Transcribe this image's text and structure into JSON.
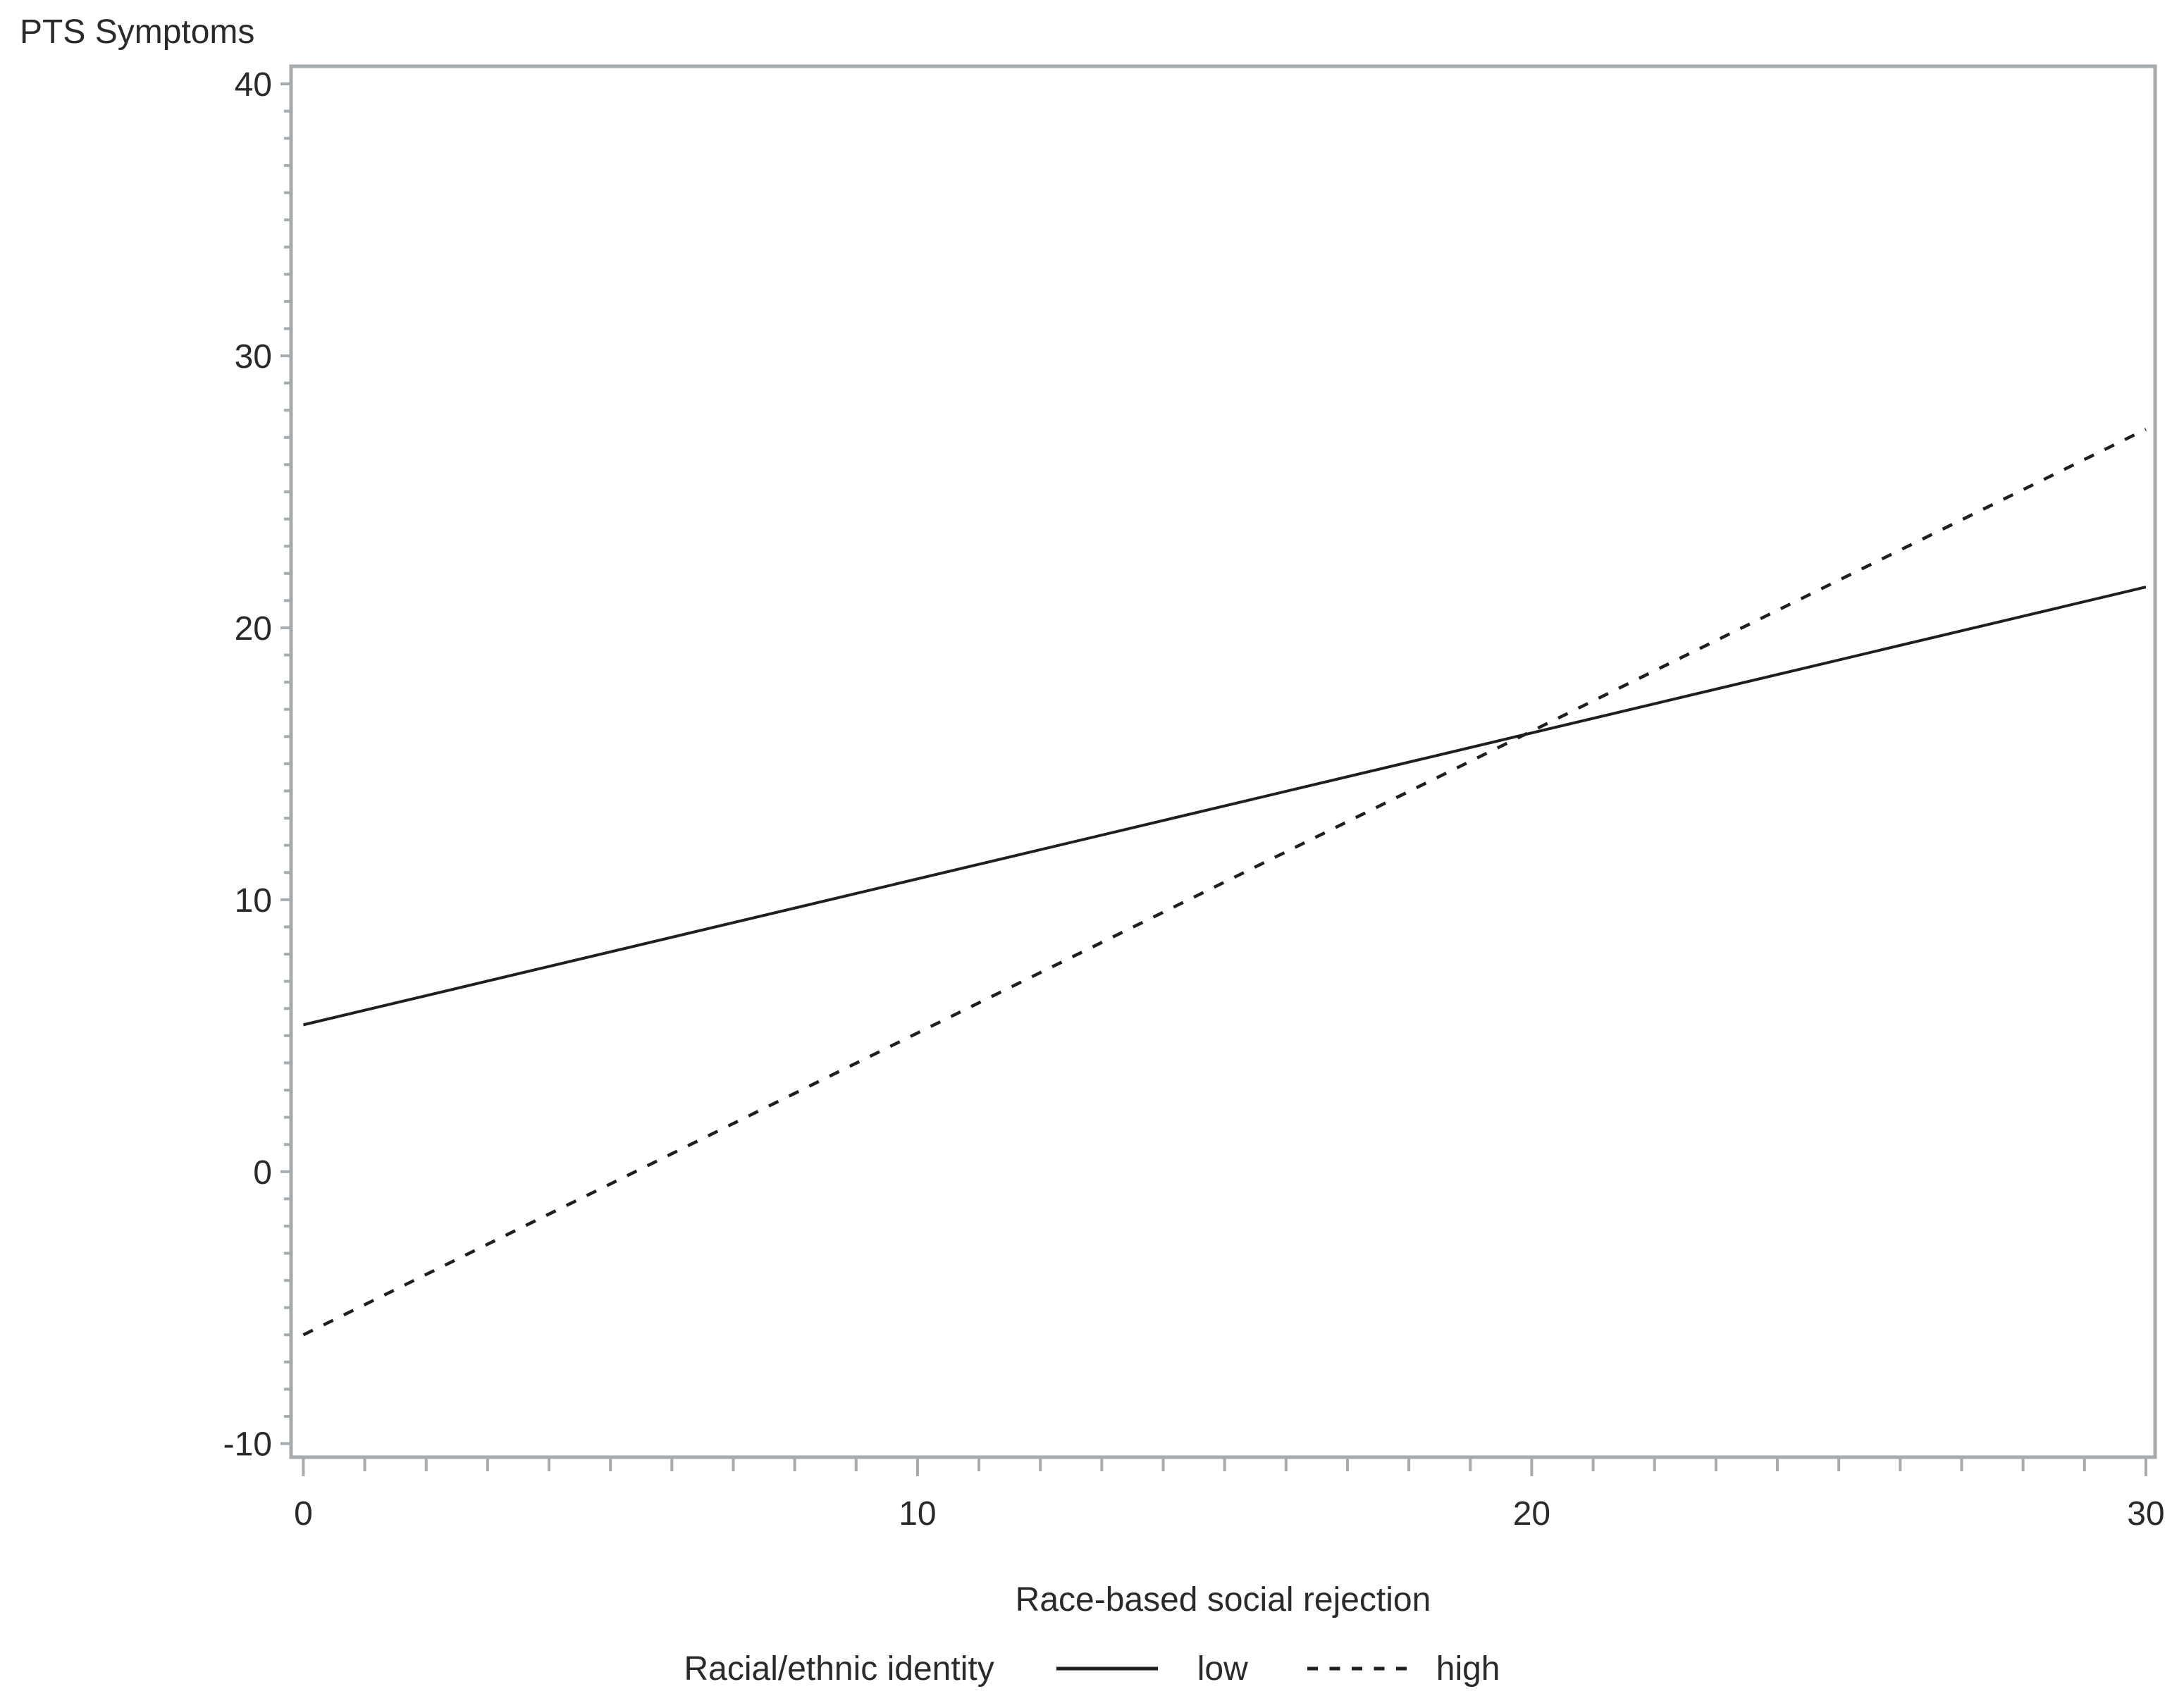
{
  "chart_data": {
    "type": "line",
    "title": "",
    "xlabel": "Race-based social rejection",
    "ylabel": "PTS Symptoms",
    "xlim": [
      -0.2,
      30.15
    ],
    "ylim": [
      -10.5,
      40.65
    ],
    "x_major_ticks": [
      0,
      10,
      20,
      30
    ],
    "x_minor_tick_step": 1,
    "y_major_ticks": [
      40,
      30,
      20,
      10,
      0,
      -10
    ],
    "y_minor_tick_step": 1,
    "grid": false,
    "legend_position": "bottom",
    "legend_title": "Racial/ethnic identity",
    "series": [
      {
        "name": "low",
        "style": "solid",
        "points": [
          [
            0,
            5.4
          ],
          [
            30,
            21.5
          ]
        ]
      },
      {
        "name": "high",
        "style": "dashed",
        "points": [
          [
            0,
            -6.0
          ],
          [
            30,
            27.3
          ]
        ]
      }
    ],
    "colors": {
      "line": "#1f1f1f",
      "frame": "#a6abae",
      "text": "#2a2a2a",
      "background": "#ffffff"
    }
  }
}
